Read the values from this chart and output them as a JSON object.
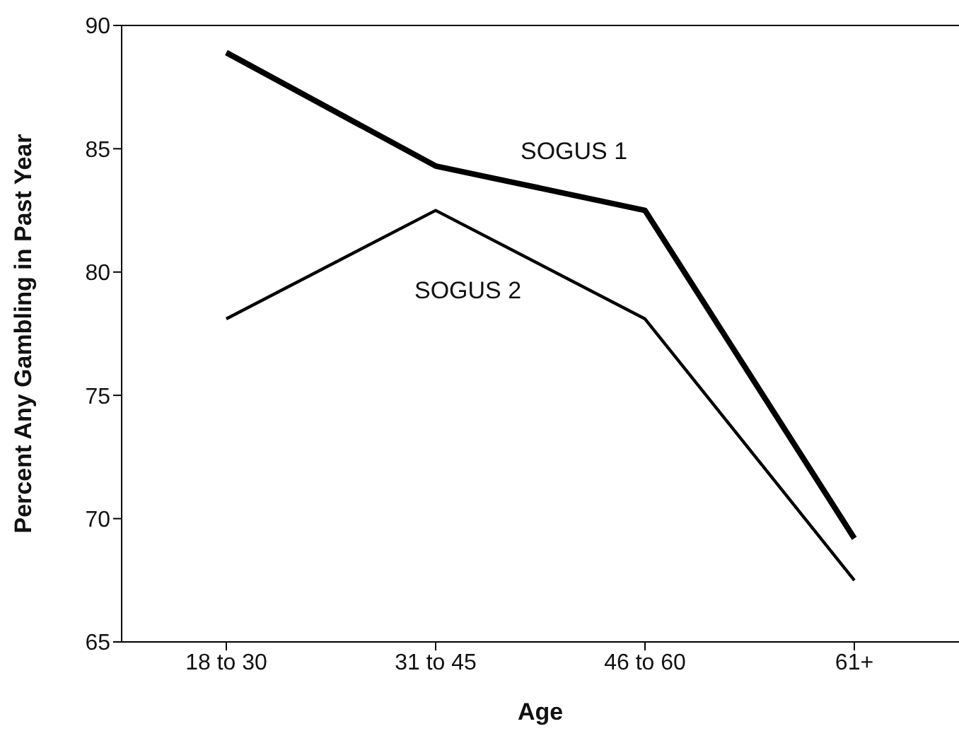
{
  "chart_data": {
    "type": "line",
    "xlabel": "Age",
    "ylabel": "Percent Any Gambling in Past Year",
    "categories": [
      "18 to 30",
      "31 to 45",
      "46 to 60",
      "61+"
    ],
    "series": [
      {
        "name": "SOGUS 1",
        "color": "#000000",
        "values": [
          88.9,
          84.3,
          82.5,
          69.2
        ]
      },
      {
        "name": "SOGUS 2",
        "color": "#000000",
        "values": [
          78.1,
          82.5,
          78.1,
          67.5
        ]
      }
    ],
    "ylim": [
      65,
      90
    ],
    "yticks": [
      65,
      70,
      75,
      80,
      85,
      90
    ],
    "marker": "none",
    "line_style": "solid"
  }
}
